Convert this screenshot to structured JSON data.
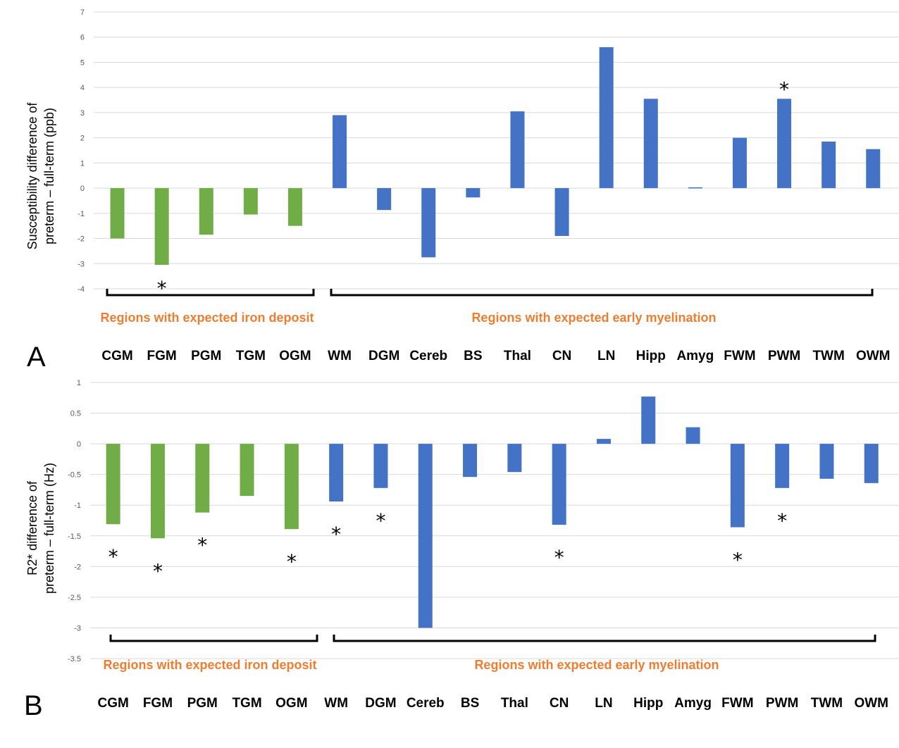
{
  "colors": {
    "iron": "#70ad47",
    "myelin": "#4472c4",
    "group_label": "#ed7d31",
    "grid": "#d9d9d9"
  },
  "chart_data": [
    {
      "type": "bar",
      "panel_label": "A",
      "ylabel_line1": "Susceptibility difference of",
      "ylabel_line2": "preterm – full-term (ppb)",
      "ylim": [
        -4,
        7
      ],
      "yticks": [
        7,
        6,
        5,
        4,
        3,
        2,
        1,
        0,
        -1,
        -2,
        -3,
        -4
      ],
      "grid": true,
      "categories": [
        "CGM",
        "FGM",
        "PGM",
        "TGM",
        "OGM",
        "WM",
        "DGM",
        "Cereb",
        "BS",
        "Thal",
        "CN",
        "LN",
        "Hipp",
        "Amyg",
        "FWM",
        "PWM",
        "TWM",
        "OWM"
      ],
      "values": [
        -2.0,
        -3.05,
        -1.85,
        -1.05,
        -1.5,
        2.9,
        -0.87,
        -2.75,
        -0.37,
        3.05,
        -1.9,
        5.6,
        3.55,
        0.03,
        2.0,
        3.55,
        1.85,
        1.55
      ],
      "groups": [
        "iron",
        "iron",
        "iron",
        "iron",
        "iron",
        "myelin",
        "myelin",
        "myelin",
        "myelin",
        "myelin",
        "myelin",
        "myelin",
        "myelin",
        "myelin",
        "myelin",
        "myelin",
        "myelin",
        "myelin"
      ],
      "significant": [
        false,
        true,
        false,
        false,
        false,
        false,
        false,
        false,
        false,
        false,
        false,
        false,
        false,
        false,
        false,
        true,
        false,
        false
      ],
      "star": "*",
      "group_labels": [
        "Regions with expected iron deposit",
        "Regions with expected early myelination"
      ]
    },
    {
      "type": "bar",
      "panel_label": "B",
      "ylabel_line1": "R2* difference of",
      "ylabel_line2": "preterm – full-term (Hz)",
      "ylim": [
        -3.5,
        1
      ],
      "yticks": [
        1,
        0.5,
        0,
        -0.5,
        -1,
        -1.5,
        -2,
        -2.5,
        -3,
        -3.5
      ],
      "grid": true,
      "categories": [
        "CGM",
        "FGM",
        "PGM",
        "TGM",
        "OGM",
        "WM",
        "DGM",
        "Cereb",
        "BS",
        "Thal",
        "CN",
        "LN",
        "Hipp",
        "Amyg",
        "FWM",
        "PWM",
        "TWM",
        "OWM"
      ],
      "values": [
        -1.31,
        -1.54,
        -1.12,
        -0.85,
        -1.39,
        -0.94,
        -0.72,
        -3.0,
        -0.54,
        -0.46,
        -1.32,
        0.08,
        0.77,
        0.27,
        -1.36,
        -0.72,
        -0.57,
        -0.64
      ],
      "groups": [
        "iron",
        "iron",
        "iron",
        "iron",
        "iron",
        "myelin",
        "myelin",
        "myelin",
        "myelin",
        "myelin",
        "myelin",
        "myelin",
        "myelin",
        "myelin",
        "myelin",
        "myelin",
        "myelin",
        "myelin"
      ],
      "significant": [
        true,
        true,
        true,
        false,
        true,
        true,
        true,
        false,
        false,
        false,
        true,
        false,
        false,
        false,
        true,
        true,
        false,
        false
      ],
      "star": "*",
      "group_labels": [
        "Regions with expected iron deposit",
        "Regions with expected early myelination"
      ]
    }
  ]
}
